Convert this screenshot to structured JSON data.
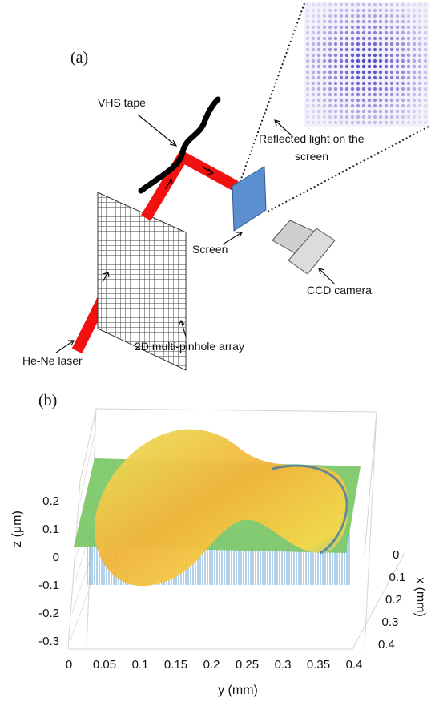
{
  "panel_a": {
    "label": "(a)",
    "vhs_tape": "VHS tape",
    "reflected_1": "Reflected light on the",
    "reflected_2": "screen",
    "screen": "Screen",
    "ccd_camera": "CCD camera",
    "laser": "He-Ne laser",
    "array": "2D multi-pinhole array"
  },
  "panel_b": {
    "label": "(b)",
    "z_label": "z (μm)",
    "y_label": "y (mm)",
    "x_label": "x (mm)",
    "z_ticks": [
      "0.2",
      "0.1",
      "0",
      "-0.1",
      "-0.2",
      "-0.3"
    ],
    "y_ticks": [
      "0",
      "0.05",
      "0.1",
      "0.15",
      "0.2",
      "0.25",
      "0.3",
      "0.35",
      "0.4"
    ],
    "x_ticks": [
      "0",
      "0.1",
      "0.2",
      "0.3",
      "0.4"
    ]
  }
}
